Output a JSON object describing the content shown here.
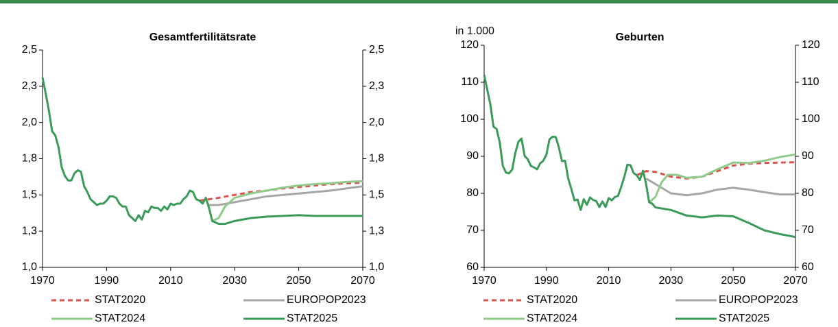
{
  "chart_data": [
    {
      "type": "line",
      "title": "Gesamtfertilitätsrate",
      "xlim": [
        1970,
        2070
      ],
      "xticks": [
        1970,
        1990,
        2010,
        2030,
        2050,
        2070
      ],
      "ylim": [
        1,
        2.5
      ],
      "yticks": [
        {
          "value": 1,
          "label": "1,0"
        },
        {
          "value": 1.25,
          "label": "1,3"
        },
        {
          "value": 1.5,
          "label": "1,5"
        },
        {
          "value": 1.75,
          "label": "1,8"
        },
        {
          "value": 2,
          "label": "2,0"
        },
        {
          "value": 2.25,
          "label": "2,3"
        },
        {
          "value": 2.5,
          "label": "2,5"
        }
      ],
      "y2lim": [
        1,
        2.5
      ],
      "y2ticks": [
        {
          "value": 1,
          "label": "1,0"
        },
        {
          "value": 1.25,
          "label": "1,3"
        },
        {
          "value": 1.5,
          "label": "1,5"
        },
        {
          "value": 1.75,
          "label": "1,8"
        },
        {
          "value": 2,
          "label": "2,0"
        },
        {
          "value": 2.25,
          "label": "2,3"
        },
        {
          "value": 2.5,
          "label": "2,5"
        }
      ],
      "series": [
        {
          "name": "STAT2020",
          "color": "#e0504a",
          "dashed": true,
          "x": [
            2019,
            2025,
            2030,
            2035,
            2040,
            2045,
            2050,
            2055,
            2060,
            2065,
            2070
          ],
          "values": [
            1.46,
            1.48,
            1.5,
            1.52,
            1.53,
            1.545,
            1.555,
            1.565,
            1.575,
            1.58,
            1.585
          ]
        },
        {
          "name": "EUROPOP2023",
          "color": "#a6a6a6",
          "dashed": false,
          "x": [
            2022,
            2025,
            2030,
            2035,
            2040,
            2045,
            2050,
            2055,
            2060,
            2065,
            2070
          ],
          "values": [
            1.43,
            1.43,
            1.45,
            1.47,
            1.49,
            1.5,
            1.51,
            1.52,
            1.53,
            1.545,
            1.56
          ]
        },
        {
          "name": "STAT2024",
          "color": "#8fcb8a",
          "dashed": false,
          "x": [
            2023,
            2025,
            2027,
            2030,
            2035,
            2040,
            2045,
            2050,
            2055,
            2060,
            2065,
            2070
          ],
          "values": [
            1.32,
            1.34,
            1.42,
            1.48,
            1.51,
            1.53,
            1.55,
            1.565,
            1.575,
            1.58,
            1.59,
            1.595
          ]
        },
        {
          "name": "STAT2025",
          "color": "#3a9a58",
          "dashed": false,
          "x": [
            1970,
            1971,
            1972,
            1973,
            1974,
            1975,
            1976,
            1977,
            1978,
            1979,
            1980,
            1981,
            1982,
            1983,
            1984,
            1985,
            1986,
            1987,
            1988,
            1989,
            1990,
            1991,
            1992,
            1993,
            1994,
            1995,
            1996,
            1997,
            1998,
            1999,
            2000,
            2001,
            2002,
            2003,
            2004,
            2005,
            2006,
            2007,
            2008,
            2009,
            2010,
            2011,
            2012,
            2013,
            2014,
            2015,
            2016,
            2017,
            2018,
            2019,
            2020,
            2021,
            2022,
            2023,
            2024,
            2025,
            2027,
            2030,
            2035,
            2040,
            2045,
            2050,
            2055,
            2060,
            2065,
            2070
          ],
          "values": [
            2.31,
            2.2,
            2.08,
            1.94,
            1.91,
            1.83,
            1.69,
            1.63,
            1.6,
            1.6,
            1.65,
            1.67,
            1.66,
            1.56,
            1.52,
            1.47,
            1.45,
            1.43,
            1.44,
            1.44,
            1.46,
            1.49,
            1.49,
            1.48,
            1.44,
            1.42,
            1.42,
            1.36,
            1.34,
            1.32,
            1.36,
            1.33,
            1.39,
            1.38,
            1.42,
            1.41,
            1.41,
            1.39,
            1.42,
            1.4,
            1.44,
            1.43,
            1.44,
            1.44,
            1.47,
            1.49,
            1.53,
            1.52,
            1.47,
            1.46,
            1.44,
            1.48,
            1.41,
            1.32,
            1.31,
            1.3,
            1.3,
            1.32,
            1.34,
            1.35,
            1.355,
            1.36,
            1.355,
            1.355,
            1.355,
            1.355
          ]
        }
      ]
    },
    {
      "type": "line",
      "title": "Geburten",
      "ylabel": "in 1.000",
      "xlim": [
        1970,
        2070
      ],
      "xticks": [
        1970,
        1990,
        2010,
        2030,
        2050,
        2070
      ],
      "ylim": [
        60,
        120
      ],
      "yticks": [
        60,
        70,
        80,
        90,
        100,
        110,
        120
      ],
      "y2lim": [
        60,
        120
      ],
      "y2ticks": [
        60,
        70,
        80,
        90,
        100,
        110,
        120
      ],
      "series": [
        {
          "name": "STAT2020",
          "color": "#e0504a",
          "dashed": true,
          "x": [
            2019,
            2022,
            2025,
            2030,
            2035,
            2040,
            2045,
            2050,
            2055,
            2060,
            2065,
            2070
          ],
          "values": [
            84.9,
            86,
            85.8,
            84.5,
            84,
            84.5,
            86,
            87.5,
            88,
            88.2,
            88.3,
            88.4
          ]
        },
        {
          "name": "EUROPOP2023",
          "color": "#a6a6a6",
          "dashed": false,
          "x": [
            2022,
            2025,
            2030,
            2035,
            2040,
            2045,
            2050,
            2055,
            2060,
            2065,
            2070
          ],
          "values": [
            84,
            82.5,
            80,
            79.5,
            80,
            81,
            81.5,
            81,
            80.3,
            79.7,
            79.7
          ]
        },
        {
          "name": "STAT2024",
          "color": "#8fcb8a",
          "dashed": false,
          "x": [
            2023,
            2025,
            2027,
            2029,
            2032,
            2035,
            2040,
            2045,
            2050,
            2055,
            2060,
            2065,
            2070
          ],
          "values": [
            77.6,
            79,
            83,
            85,
            85,
            84.2,
            84.5,
            86.5,
            88.3,
            88.2,
            88.8,
            89.8,
            90.5
          ]
        },
        {
          "name": "STAT2025",
          "color": "#3a9a58",
          "dashed": false,
          "x": [
            1970,
            1971,
            1972,
            1973,
            1974,
            1975,
            1976,
            1977,
            1978,
            1979,
            1980,
            1981,
            1982,
            1983,
            1984,
            1985,
            1986,
            1987,
            1988,
            1989,
            1990,
            1991,
            1992,
            1993,
            1994,
            1995,
            1996,
            1997,
            1998,
            1999,
            2000,
            2001,
            2002,
            2003,
            2004,
            2005,
            2006,
            2007,
            2008,
            2009,
            2010,
            2011,
            2012,
            2013,
            2014,
            2015,
            2016,
            2017,
            2018,
            2019,
            2020,
            2021,
            2022,
            2023,
            2024,
            2025,
            2030,
            2035,
            2040,
            2045,
            2050,
            2055,
            2060,
            2065,
            2070
          ],
          "values": [
            112,
            108,
            104,
            98,
            97.4,
            93.8,
            87.4,
            85.6,
            85.4,
            86.4,
            90.9,
            93.9,
            94.8,
            90.1,
            89.2,
            87.4,
            87,
            86.5,
            88.1,
            88.8,
            90.5,
            94.6,
            95.3,
            95.2,
            92.4,
            88.7,
            88.8,
            84,
            81.2,
            78.1,
            78.3,
            75.5,
            78.4,
            76.9,
            78.9,
            78.2,
            77.9,
            76.3,
            77.8,
            76.3,
            78.7,
            78.1,
            79,
            79.3,
            81.7,
            84.4,
            87.7,
            87.6,
            85.5,
            84.9,
            83.6,
            86.1,
            82.6,
            77.6,
            77.2,
            76.2,
            75.5,
            74,
            73.5,
            74,
            73.8,
            72,
            70,
            69,
            68.2
          ]
        }
      ]
    }
  ]
}
